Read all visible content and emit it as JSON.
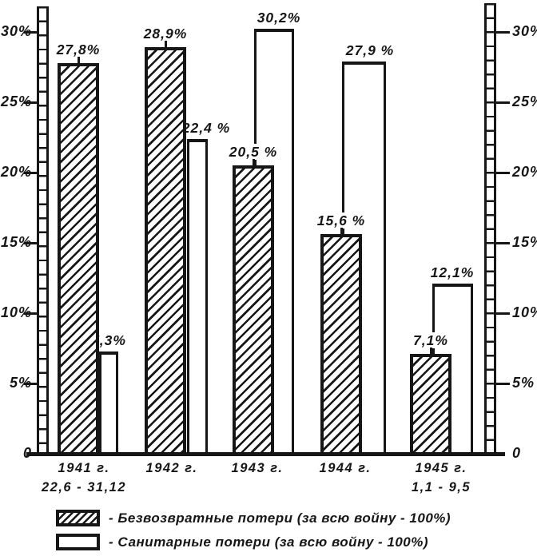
{
  "chart_data": {
    "type": "bar",
    "title": "",
    "categories": [
      {
        "year": "1941 г.",
        "range": "22,6 - 31,12"
      },
      {
        "year": "1942 г.",
        "range": ""
      },
      {
        "year": "1943 г.",
        "range": ""
      },
      {
        "year": "1944 г.",
        "range": ""
      },
      {
        "year": "1945 г.",
        "range": "1,1 - 9,5"
      }
    ],
    "series": [
      {
        "name": "Безвозвратные потери",
        "style": "hatched",
        "values": [
          27.8,
          28.9,
          20.5,
          15.6,
          7.1
        ],
        "value_labels": [
          "27,8%",
          "28,9%",
          "20,5 %",
          "15,6 %",
          "7,1%"
        ]
      },
      {
        "name": "Санитарные потери",
        "style": "white",
        "values": [
          7.3,
          22.4,
          30.2,
          27.9,
          12.1
        ],
        "value_labels": [
          "7,3%",
          "22,4 %",
          "30,2%",
          "27,9 %",
          "12,1%"
        ]
      }
    ],
    "ylim": [
      0,
      32
    ],
    "yticks": {
      "values": [
        30,
        25,
        20,
        15,
        10,
        5,
        0
      ],
      "labels": [
        "30%",
        "25%",
        "20%",
        "15%",
        "10%",
        "5%",
        "0"
      ]
    },
    "y_axis_sides": [
      "left",
      "right"
    ],
    "grid": false,
    "legend_position": "bottom",
    "ink_color": "#161616",
    "paper_color": "#ffffff"
  },
  "legend": {
    "items": [
      {
        "swatch": "hatched",
        "label": "- Безвозвратные  потери  (за всю войну - 100%)"
      },
      {
        "swatch": "white",
        "label": "- Санитарные  потери  (за всю войну - 100%)"
      }
    ]
  }
}
